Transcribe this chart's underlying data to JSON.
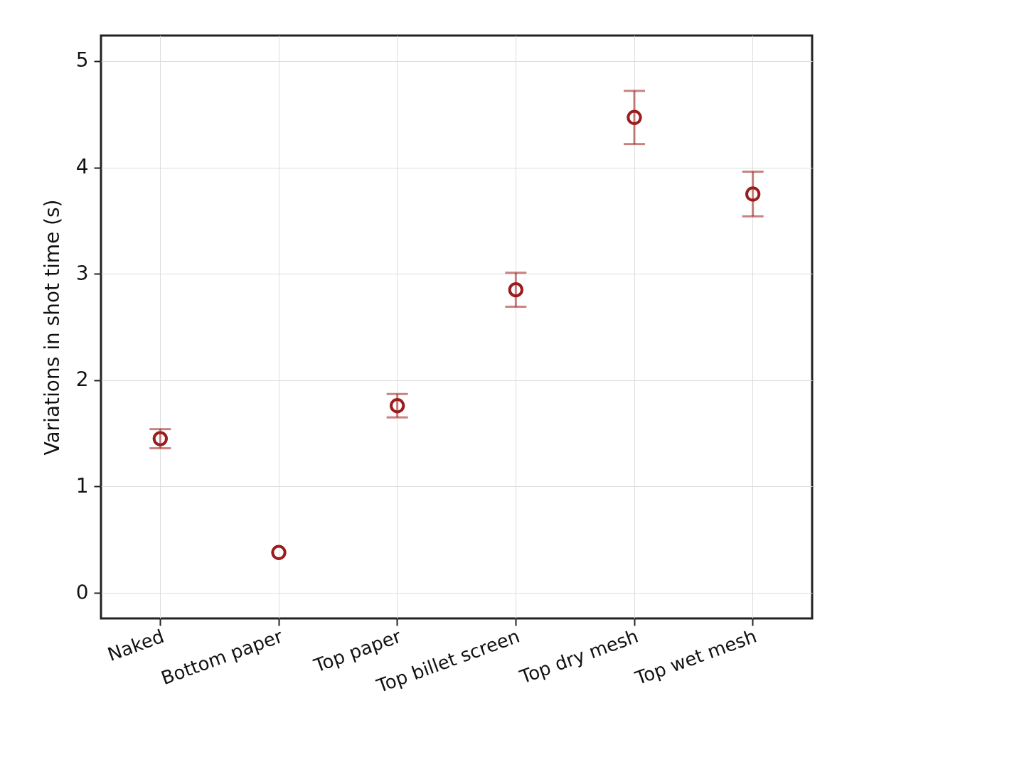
{
  "chart_data": {
    "type": "scatter",
    "ylabel": "Variations in shot time (s)",
    "categories": [
      "Naked",
      "Bottom paper",
      "Top paper",
      "Top billet screen",
      "Top dry mesh",
      "Top wet mesh"
    ],
    "series": [
      {
        "color": "#9b1c1c",
        "values": [
          1.45,
          0.38,
          1.76,
          2.85,
          4.47,
          3.75
        ],
        "errors": [
          0.09,
          null,
          0.11,
          0.16,
          0.25,
          0.21
        ]
      }
    ],
    "ylim": [
      -0.24,
      5.24
    ],
    "yticks": [
      0,
      1,
      2,
      3,
      4,
      5
    ],
    "grid": true,
    "marker": "circle"
  }
}
